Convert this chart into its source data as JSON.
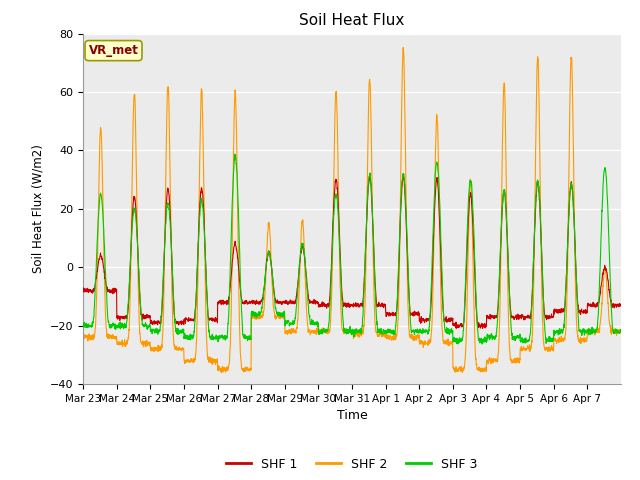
{
  "title": "Soil Heat Flux",
  "xlabel": "Time",
  "ylabel": "Soil Heat Flux (W/m2)",
  "ylim": [
    -40,
    80
  ],
  "yticks": [
    -40,
    -20,
    0,
    20,
    40,
    60,
    80
  ],
  "fig_bg_color": "#ffffff",
  "plot_bg_color": "#ebebeb",
  "grid_color": "#ffffff",
  "shf1_color": "#cc0000",
  "shf2_color": "#ff9900",
  "shf3_color": "#00cc00",
  "legend_labels": [
    "SHF 1",
    "SHF 2",
    "SHF 3"
  ],
  "annotation_text": "VR_met",
  "annotation_bg": "#ffffcc",
  "annotation_border": "#999900",
  "annotation_text_color": "#880000",
  "x_tick_labels": [
    "Mar 23",
    "Mar 24",
    "Mar 25",
    "Mar 26",
    "Mar 27",
    "Mar 28",
    "Mar 29",
    "Mar 30",
    "Mar 31",
    "Apr 1",
    "Apr 2",
    "Apr 3",
    "Apr 4",
    "Apr 5",
    "Apr 6",
    "Apr 7"
  ],
  "n_days": 16,
  "points_per_day": 144
}
